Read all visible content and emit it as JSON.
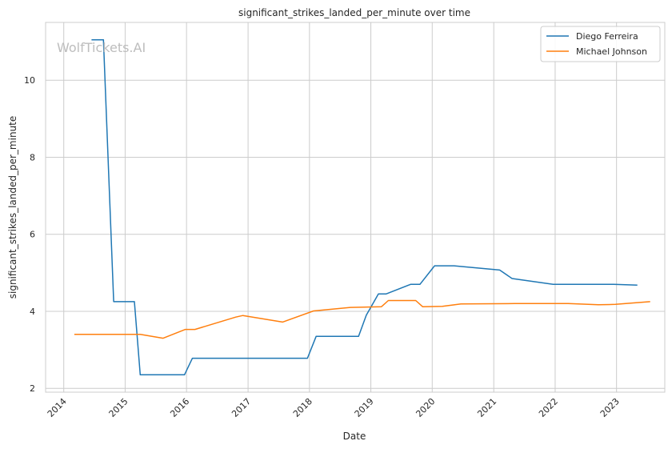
{
  "watermark": "WolfTickets.AI",
  "chart_data": {
    "type": "line",
    "title": "significant_strikes_landed_per_minute over time",
    "xlabel": "Date",
    "ylabel": "significant_strikes_landed_per_minute",
    "x_ticks": [
      "2014",
      "2015",
      "2016",
      "2017",
      "2018",
      "2019",
      "2020",
      "2021",
      "2022",
      "2023"
    ],
    "y_ticks": [
      "2",
      "4",
      "6",
      "8",
      "10"
    ],
    "xlim": [
      "2013-09-15",
      "2023-10-15"
    ],
    "ylim": [
      1.9,
      11.5
    ],
    "grid": true,
    "legend_position": "top-right",
    "series": [
      {
        "name": "Diego Ferreira",
        "color": "#1f77b4",
        "points": [
          [
            "2014-06-15",
            11.05
          ],
          [
            "2014-08-25",
            11.05
          ],
          [
            "2014-10-25",
            4.25
          ],
          [
            "2015-02-25",
            4.25
          ],
          [
            "2015-04-01",
            2.35
          ],
          [
            "2015-12-20",
            2.35
          ],
          [
            "2016-02-05",
            2.78
          ],
          [
            "2017-12-20",
            2.78
          ],
          [
            "2018-02-10",
            3.35
          ],
          [
            "2018-10-20",
            3.35
          ],
          [
            "2018-12-05",
            3.9
          ],
          [
            "2019-02-15",
            4.45
          ],
          [
            "2019-04-01",
            4.45
          ],
          [
            "2019-08-25",
            4.7
          ],
          [
            "2019-10-20",
            4.7
          ],
          [
            "2020-01-15",
            5.18
          ],
          [
            "2020-05-10",
            5.18
          ],
          [
            "2021-02-05",
            5.07
          ],
          [
            "2021-04-20",
            4.85
          ],
          [
            "2021-12-20",
            4.7
          ],
          [
            "2022-12-15",
            4.7
          ],
          [
            "2023-05-05",
            4.68
          ]
        ]
      },
      {
        "name": "Michael Johnson",
        "color": "#ff7f0e",
        "points": [
          [
            "2014-03-05",
            3.4
          ],
          [
            "2015-04-01",
            3.4
          ],
          [
            "2015-08-15",
            3.3
          ],
          [
            "2015-12-25",
            3.53
          ],
          [
            "2016-02-20",
            3.53
          ],
          [
            "2016-10-20",
            3.85
          ],
          [
            "2016-12-01",
            3.89
          ],
          [
            "2017-07-25",
            3.72
          ],
          [
            "2018-01-25",
            4.01
          ],
          [
            "2018-09-01",
            4.1
          ],
          [
            "2019-03-05",
            4.12
          ],
          [
            "2019-04-15",
            4.28
          ],
          [
            "2019-09-25",
            4.28
          ],
          [
            "2019-11-05",
            4.12
          ],
          [
            "2020-03-01",
            4.13
          ],
          [
            "2020-06-20",
            4.19
          ],
          [
            "2021-05-05",
            4.2
          ],
          [
            "2022-03-20",
            4.2
          ],
          [
            "2022-09-15",
            4.17
          ],
          [
            "2022-12-25",
            4.18
          ],
          [
            "2023-07-20",
            4.25
          ]
        ]
      }
    ]
  }
}
